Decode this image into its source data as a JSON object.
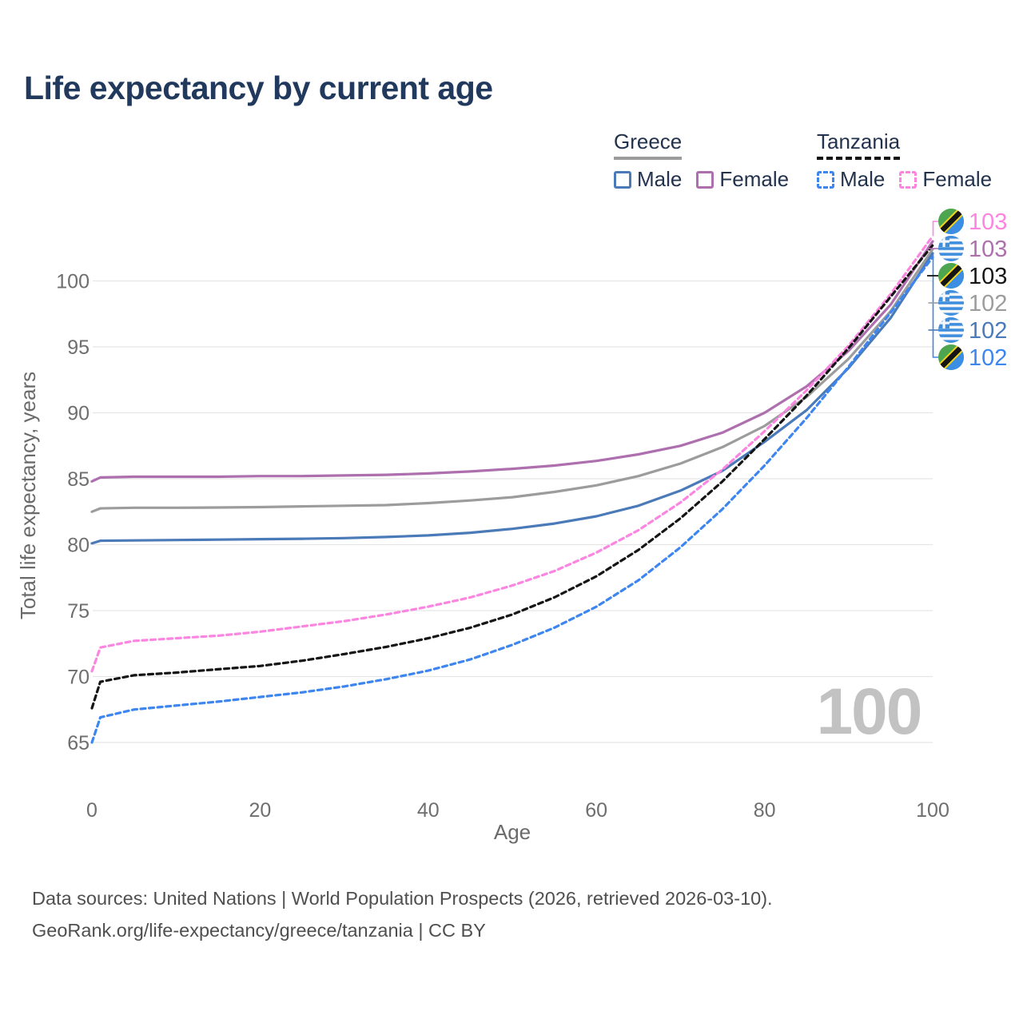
{
  "page": {
    "title": "Life expectancy by current age"
  },
  "legend": {
    "groups": [
      {
        "country": "Greece",
        "line_style": "solid",
        "underline_color": "#9c9c9c",
        "items": [
          {
            "label": "Male",
            "color": "#4b7ab9",
            "dashed": false
          },
          {
            "label": "Female",
            "color": "#ae6fae",
            "dashed": false
          }
        ]
      },
      {
        "country": "Tanzania",
        "line_style": "dashed",
        "underline_color": "#151515",
        "items": [
          {
            "label": "Male",
            "color": "#3e86ef",
            "dashed": true
          },
          {
            "label": "Female",
            "color": "#fb85e0",
            "dashed": true
          }
        ]
      }
    ]
  },
  "chart_data": {
    "type": "line",
    "title": "Life expectancy by current age",
    "xlabel": "Age",
    "ylabel": "Total life expectancy, years",
    "xticks": [
      0,
      20,
      40,
      60,
      80,
      100
    ],
    "yticks": [
      65,
      70,
      75,
      80,
      85,
      90,
      95,
      100
    ],
    "xlim": [
      0,
      100
    ],
    "ylim": [
      63.5,
      104.5
    ],
    "grid": "horizontal-only",
    "legend_position": "top-right",
    "hover_age_indicator": "100",
    "x": [
      0,
      1,
      5,
      10,
      15,
      20,
      25,
      30,
      35,
      40,
      45,
      50,
      55,
      60,
      65,
      70,
      75,
      80,
      85,
      90,
      95,
      100
    ],
    "series": [
      {
        "name": "Greece Female",
        "color": "#ae6fae",
        "dashed": false,
        "values": [
          84.8,
          85.1,
          85.15,
          85.15,
          85.15,
          85.2,
          85.2,
          85.25,
          85.3,
          85.4,
          85.55,
          85.75,
          86.0,
          86.35,
          86.85,
          87.5,
          88.5,
          90.0,
          92.0,
          94.7,
          98.2,
          103.0
        ]
      },
      {
        "name": "Greece",
        "color": "#9c9c9c",
        "dashed": false,
        "values": [
          82.5,
          82.75,
          82.8,
          82.8,
          82.82,
          82.85,
          82.9,
          82.95,
          83.0,
          83.15,
          83.35,
          83.6,
          84.0,
          84.5,
          85.2,
          86.15,
          87.4,
          89.0,
          91.2,
          94.1,
          97.7,
          102.4
        ]
      },
      {
        "name": "Greece Male",
        "color": "#4b7ab9",
        "dashed": false,
        "values": [
          80.1,
          80.3,
          80.32,
          80.35,
          80.38,
          80.42,
          80.45,
          80.5,
          80.58,
          80.7,
          80.9,
          81.2,
          81.6,
          82.15,
          82.95,
          84.1,
          85.6,
          87.8,
          90.2,
          93.4,
          97.2,
          102.1
        ]
      },
      {
        "name": "Tanzania Female",
        "color": "#fb85e0",
        "dashed": true,
        "values": [
          70.4,
          72.2,
          72.7,
          72.9,
          73.1,
          73.4,
          73.8,
          74.2,
          74.7,
          75.3,
          76.0,
          76.9,
          78.0,
          79.4,
          81.1,
          83.2,
          85.7,
          88.6,
          91.7,
          95.1,
          99.0,
          103.4
        ]
      },
      {
        "name": "Tanzania",
        "color": "#151515",
        "dashed": true,
        "values": [
          67.6,
          69.6,
          70.1,
          70.3,
          70.55,
          70.8,
          71.2,
          71.7,
          72.25,
          72.9,
          73.7,
          74.7,
          76.0,
          77.6,
          79.6,
          82.0,
          84.8,
          88.0,
          91.3,
          94.9,
          98.8,
          102.7
        ]
      },
      {
        "name": "Tanzania Male",
        "color": "#3e86ef",
        "dashed": true,
        "values": [
          65.0,
          66.9,
          67.5,
          67.8,
          68.1,
          68.45,
          68.8,
          69.25,
          69.8,
          70.45,
          71.3,
          72.4,
          73.7,
          75.3,
          77.3,
          79.8,
          82.7,
          86.0,
          89.6,
          93.5,
          97.6,
          101.8
        ]
      }
    ],
    "end_labels": [
      {
        "text": "103",
        "color": "#fb85e0",
        "flag": "tanzania",
        "series": "Tanzania Female"
      },
      {
        "text": "103",
        "color": "#ae6fae",
        "flag": "greece",
        "series": "Greece Female"
      },
      {
        "text": "103",
        "color": "#151515",
        "flag": "tanzania",
        "series": "Tanzania"
      },
      {
        "text": "102",
        "color": "#9c9c9c",
        "flag": "greece",
        "series": "Greece"
      },
      {
        "text": "102",
        "color": "#4b7ab9",
        "flag": "greece",
        "series": "Greece Male"
      },
      {
        "text": "102",
        "color": "#3e86ef",
        "flag": "tanzania",
        "series": "Tanzania Male"
      }
    ]
  },
  "footer": {
    "line1": "Data sources: United Nations | World Population Prospects (2026, retrieved 2026-03-10).",
    "line2": "GeoRank.org/life-expectancy/greece/tanzania | CC BY"
  }
}
